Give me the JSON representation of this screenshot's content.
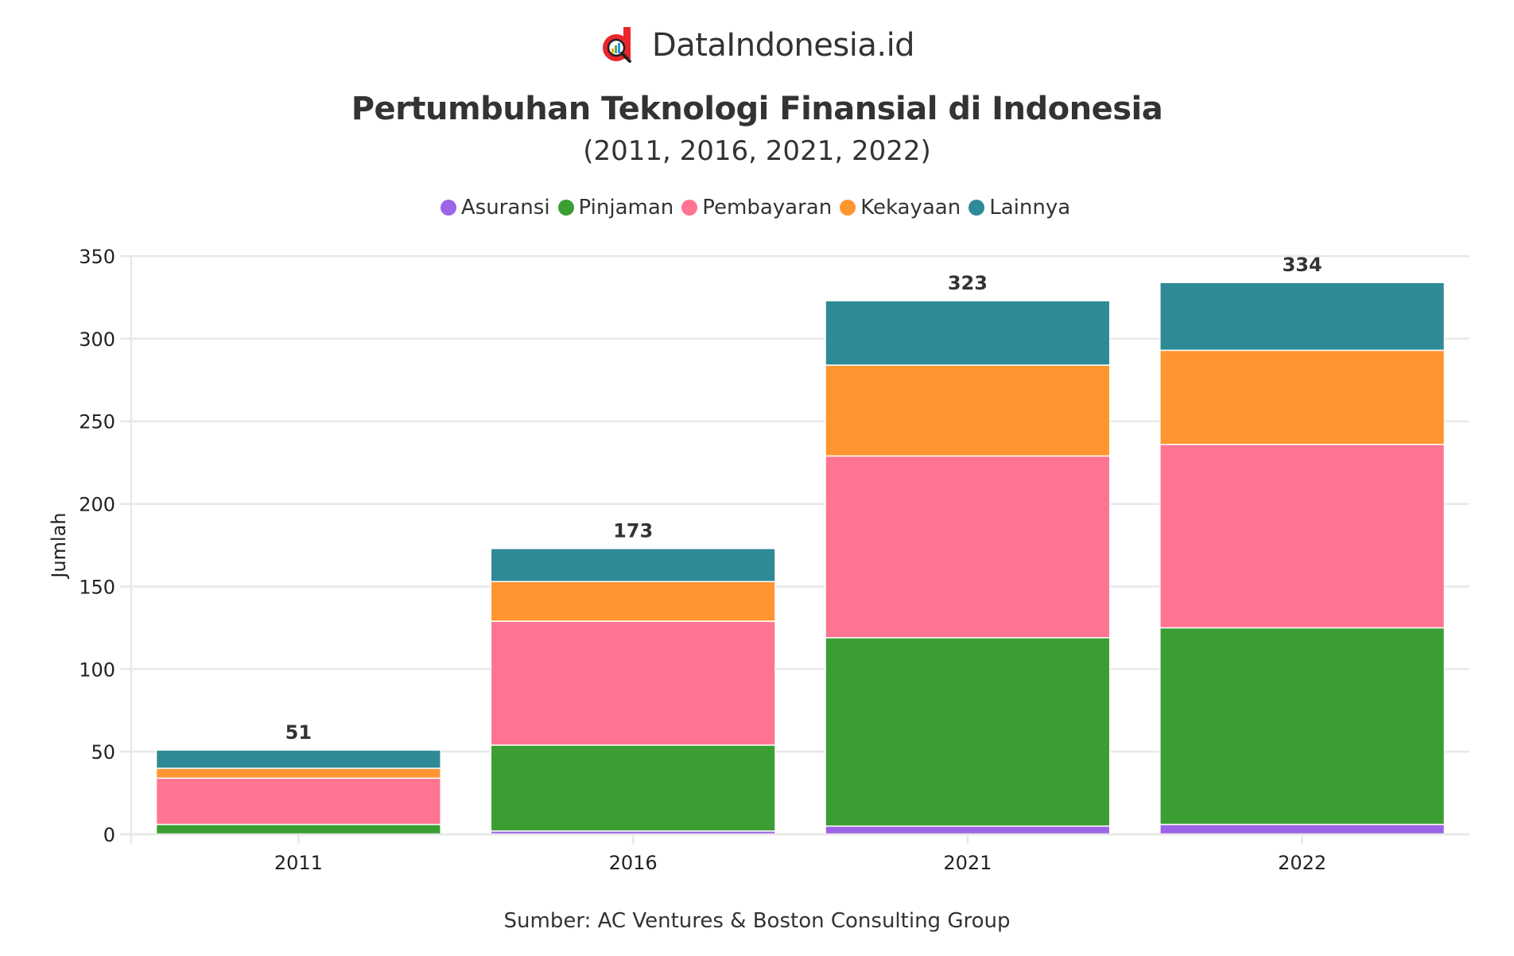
{
  "brand": {
    "name": "DataIndonesia.id",
    "logo_icon": "magnifier-chart-logo-icon",
    "logo_color": "#e8262c"
  },
  "source": "Sumber: AC Ventures & Boston Consulting Group",
  "chart_data": {
    "type": "bar",
    "stacked": true,
    "title": "Pertumbuhan Teknologi Finansial di Indonesia",
    "subtitle": "(2011, 2016, 2021, 2022)",
    "xlabel": "",
    "ylabel": "Jumlah",
    "ylim": [
      0,
      350
    ],
    "yticks": [
      0,
      50,
      100,
      150,
      200,
      250,
      300,
      350
    ],
    "grid": true,
    "legend_position": "top-center",
    "categories": [
      "2011",
      "2016",
      "2021",
      "2022"
    ],
    "series": [
      {
        "name": "Asuransi",
        "color": "#9c64e6",
        "values": [
          0,
          2,
          5,
          6
        ]
      },
      {
        "name": "Pinjaman",
        "color": "#3a9e33",
        "values": [
          6,
          52,
          114,
          119
        ]
      },
      {
        "name": "Pembayaran",
        "color": "#ff7490",
        "values": [
          28,
          75,
          110,
          111
        ]
      },
      {
        "name": "Kekayaan",
        "color": "#ff9530",
        "values": [
          6,
          24,
          55,
          57
        ]
      },
      {
        "name": "Lainnya",
        "color": "#2e8a97",
        "values": [
          11,
          20,
          39,
          41
        ]
      }
    ],
    "totals": [
      51,
      173,
      323,
      334
    ]
  }
}
